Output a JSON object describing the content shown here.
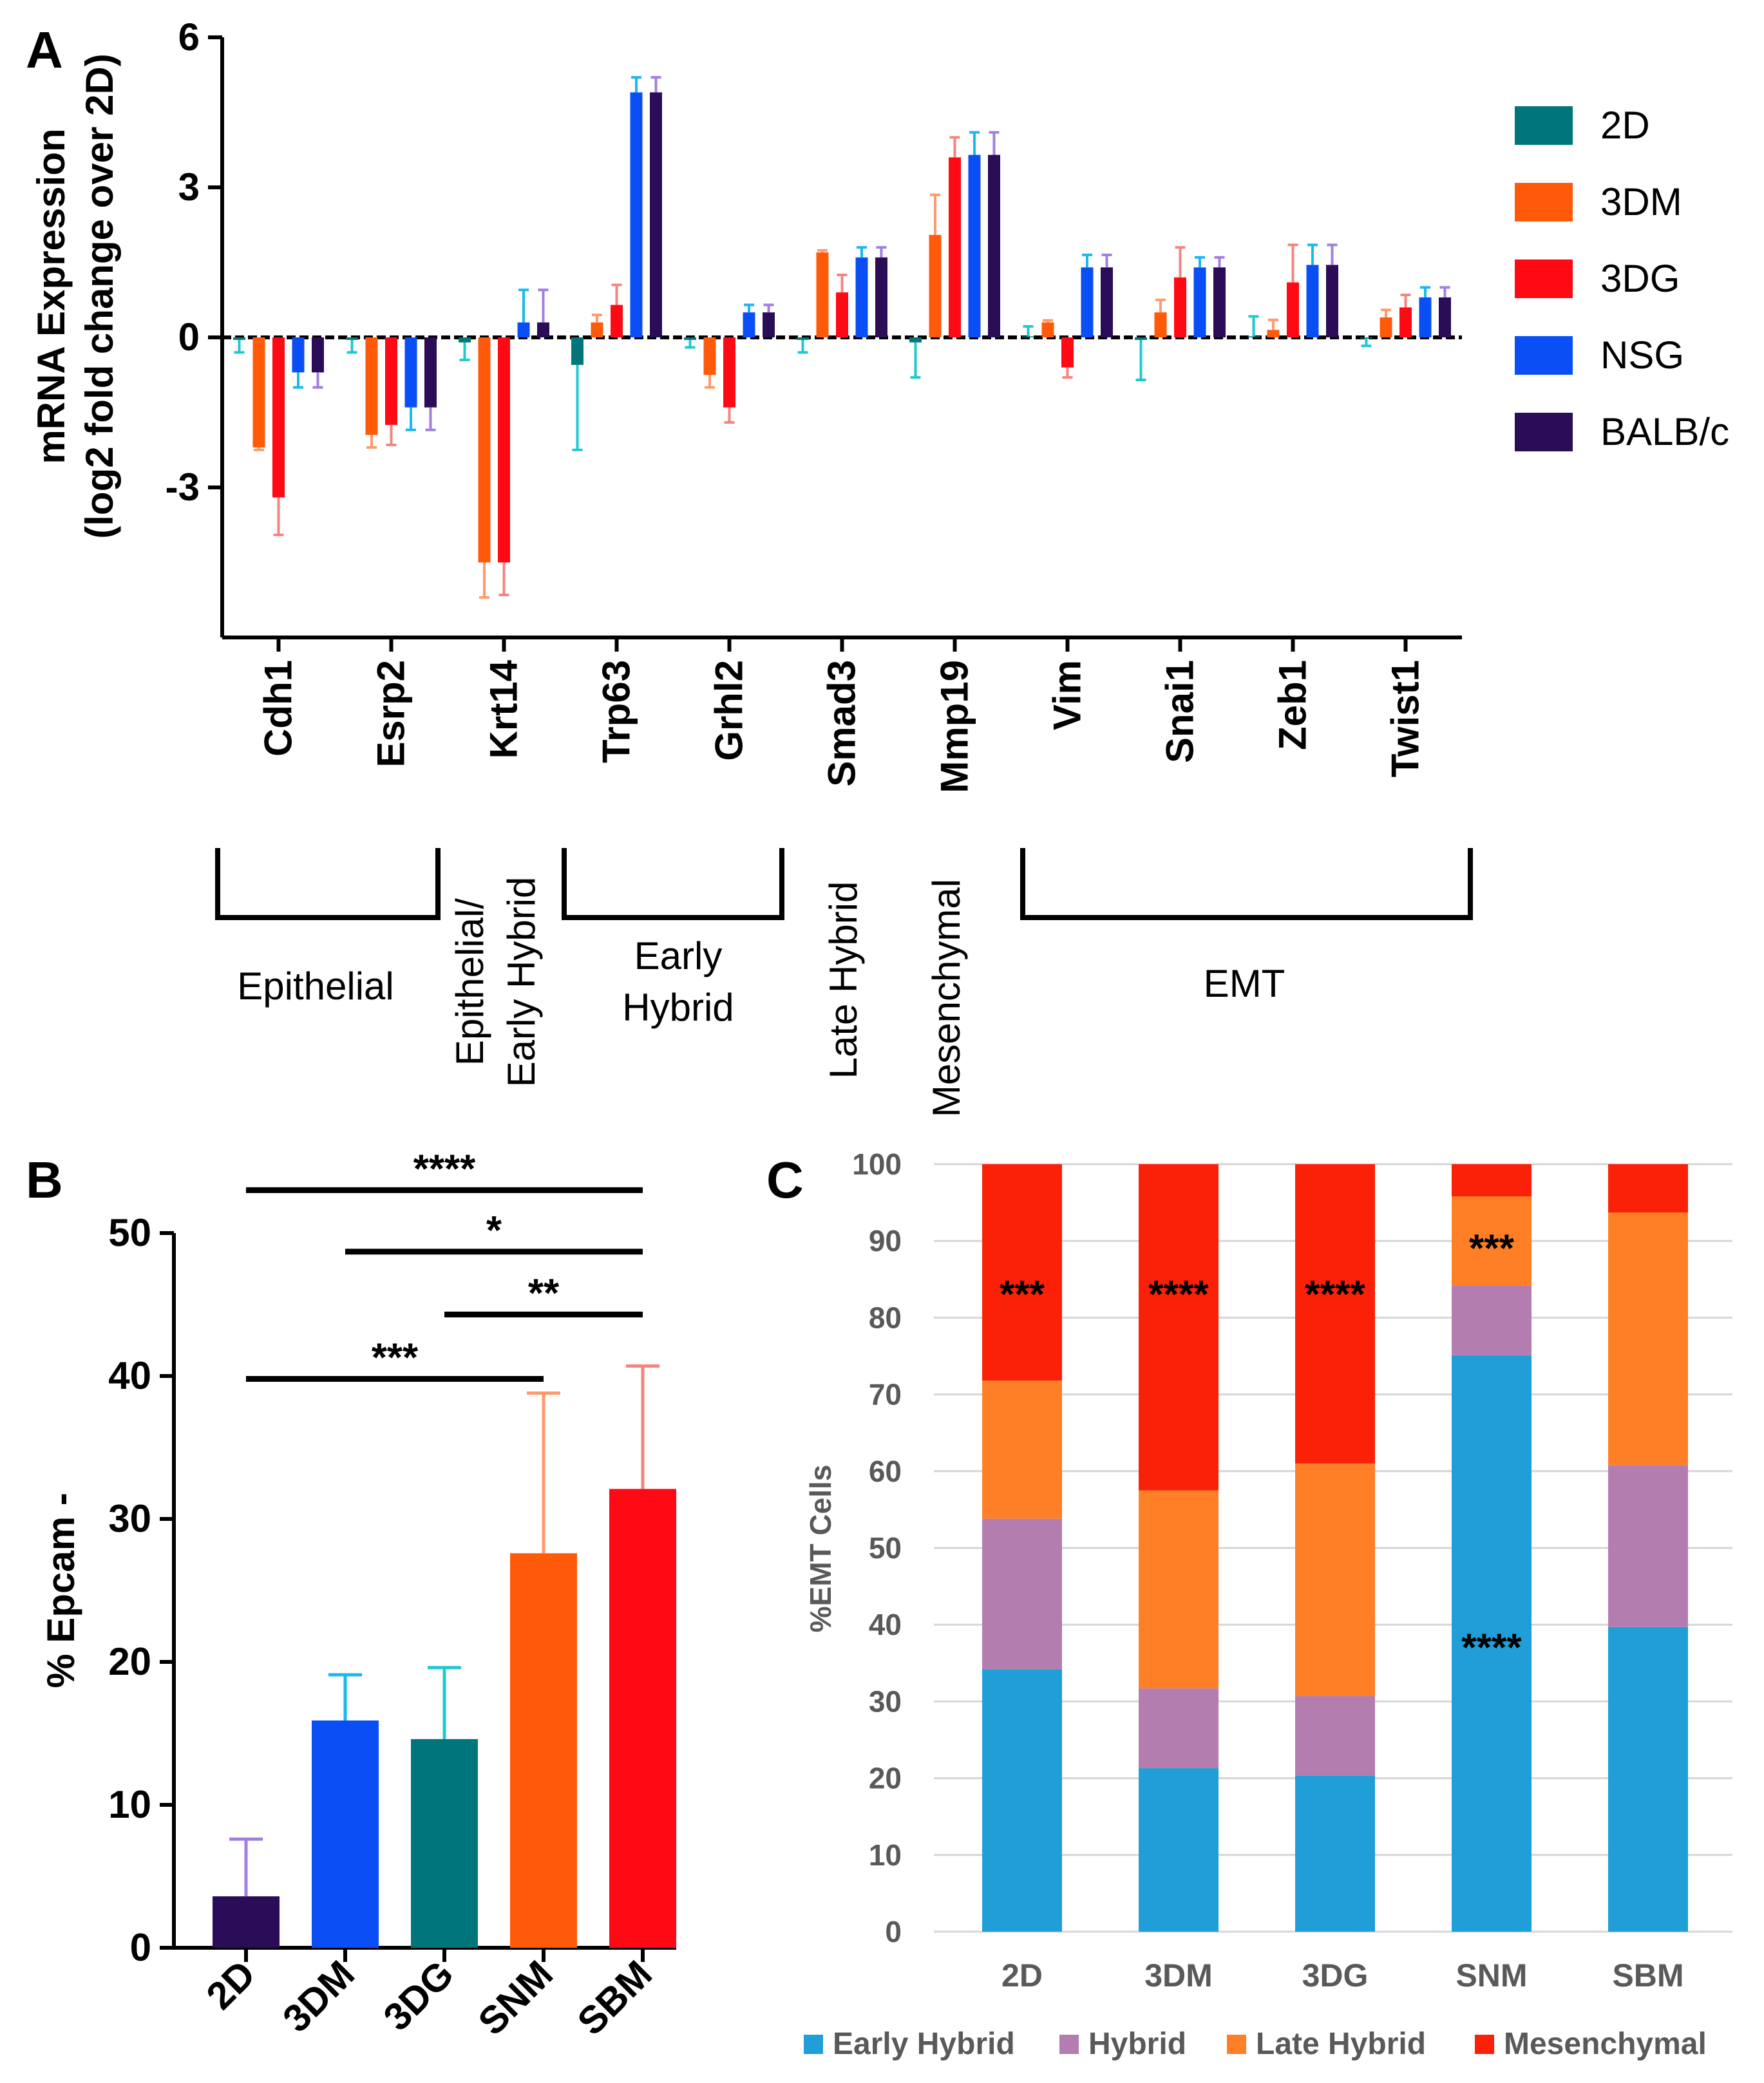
{
  "panels": {
    "a": "A",
    "b": "B",
    "c": "C"
  },
  "group_labels": [
    [
      "Epithelial"
    ],
    [
      "Epithelial/",
      "Early Hybrid"
    ],
    [
      "Early",
      "Hybrid"
    ],
    [
      "Late Hybrid"
    ],
    [
      "Mesenchymal"
    ],
    [
      "EMT"
    ]
  ],
  "colors": {
    "2D": "#00767a",
    "3DM": "#ff5a0a",
    "3DG": "#ff0a14",
    "NSG": "#0a4ff5",
    "BALB/c": "#2a0c57",
    "err_2D": "#1fc9d2",
    "err_3DM": "#ff9a6c",
    "err_3DG": "#f5847f",
    "err_NSG": "#1ab8ee",
    "err_BALB/c": "#a07fe0",
    "early_hybrid": "#1f9ed8",
    "hybrid": "#b47daf",
    "late_hybrid": "#ff7f26",
    "mesenchymal": "#fa2108",
    "gridline": "#d6d6d6",
    "axis": "#000000"
  },
  "chart_data": [
    {
      "id": "A",
      "type": "bar",
      "ylabel_lines": [
        "mRNA Expression",
        "(log2 fold change over 2D)"
      ],
      "ylim": [
        -6,
        6
      ],
      "yticks": [
        6,
        3,
        0,
        -3
      ],
      "ytick_labels": [
        "6",
        "3",
        "0",
        "-3"
      ],
      "categories": [
        "Cdh1",
        "Esrp2",
        "Krt14",
        "Trp63",
        "Grhl2",
        "Smad3",
        "Mmp19",
        "Vim",
        "Snai1",
        "Zeb1",
        "Twist1"
      ],
      "series": [
        {
          "name": "2D",
          "values": [
            -0.05,
            -0.05,
            -0.1,
            -0.55,
            -0.05,
            -0.05,
            -0.1,
            0.02,
            -0.05,
            0.02,
            -0.02
          ],
          "errors": [
            0.25,
            0.25,
            0.35,
            1.7,
            0.15,
            0.25,
            0.7,
            0.2,
            0.8,
            0.4,
            0.15
          ]
        },
        {
          "name": "3DM",
          "values": [
            -2.2,
            -1.95,
            -4.5,
            0.3,
            -0.75,
            1.7,
            2.05,
            0.3,
            0.5,
            0.15,
            0.4
          ],
          "errors": [
            0.05,
            0.25,
            0.7,
            0.15,
            0.25,
            0.04,
            0.8,
            0.04,
            0.25,
            0.2,
            0.15
          ]
        },
        {
          "name": "3DG",
          "values": [
            -3.2,
            -1.75,
            -4.5,
            0.65,
            -1.4,
            0.9,
            3.6,
            -0.6,
            1.2,
            1.1,
            0.6
          ],
          "errors": [
            0.75,
            0.4,
            0.65,
            0.4,
            0.3,
            0.35,
            0.4,
            0.2,
            0.6,
            0.75,
            0.25
          ]
        },
        {
          "name": "NSG",
          "values": [
            -0.7,
            -1.4,
            0.3,
            4.9,
            0.5,
            1.6,
            3.65,
            1.4,
            1.4,
            1.45,
            0.8
          ],
          "errors": [
            0.3,
            0.45,
            0.65,
            0.3,
            0.15,
            0.2,
            0.45,
            0.25,
            0.2,
            0.4,
            0.2
          ]
        },
        {
          "name": "BALB/c",
          "values": [
            -0.7,
            -1.4,
            0.3,
            4.9,
            0.5,
            1.6,
            3.65,
            1.4,
            1.4,
            1.45,
            0.8
          ],
          "errors": [
            0.3,
            0.45,
            0.65,
            0.3,
            0.15,
            0.2,
            0.45,
            0.25,
            0.2,
            0.4,
            0.2
          ]
        }
      ],
      "legend": [
        "2D",
        "3DM",
        "3DG",
        "NSG",
        "BALB/c"
      ],
      "legend_position": "right"
    },
    {
      "id": "B",
      "type": "bar",
      "ylabel": "% Epcam -",
      "ylim": [
        0,
        50
      ],
      "yticks": [
        0,
        10,
        20,
        30,
        40,
        50
      ],
      "ytick_labels": [
        "0",
        "10",
        "20",
        "30",
        "40",
        "50"
      ],
      "categories": [
        "2D",
        "3DM",
        "3DG",
        "SNM",
        "SBM"
      ],
      "values": [
        3.6,
        15.9,
        14.6,
        27.6,
        32.1
      ],
      "errors": [
        4.0,
        3.2,
        5.0,
        11.2,
        8.6
      ],
      "bar_colors": [
        "#2a0c57",
        "#0a4ff5",
        "#00767a",
        "#ff5a0a",
        "#ff0a14"
      ],
      "error_colors": [
        "#a07fe0",
        "#1ab8ee",
        "#1fc9d2",
        "#ff9a6c",
        "#f5847f"
      ],
      "significance": [
        {
          "from": "2D",
          "to": "SBM",
          "label": "****",
          "y": 53
        },
        {
          "from": "3DM",
          "to": "SBM",
          "label": "*",
          "y": 48.7
        },
        {
          "from": "3DG",
          "to": "SBM",
          "label": "**",
          "y": 44.3
        },
        {
          "from": "2D",
          "to": "SNM",
          "label": "***",
          "y": 39.8
        }
      ]
    },
    {
      "id": "C",
      "type": "bar",
      "stacked": true,
      "ylabel": "%EMT Cells",
      "ylim": [
        0,
        100
      ],
      "yticks": [
        0,
        10,
        20,
        30,
        40,
        50,
        60,
        70,
        80,
        90,
        100
      ],
      "ytick_labels": [
        "0",
        "10",
        "20",
        "30",
        "40",
        "50",
        "60",
        "70",
        "80",
        "90",
        "100"
      ],
      "grid": true,
      "categories": [
        "2D",
        "3DM",
        "3DG",
        "SNM",
        "SBM"
      ],
      "series": [
        {
          "name": "Early Hybrid",
          "values": [
            34.2,
            21.3,
            20.3,
            75.1,
            39.7
          ]
        },
        {
          "name": "Hybrid",
          "values": [
            19.6,
            10.4,
            10.4,
            9.1,
            21.1
          ]
        },
        {
          "name": "Late Hybrid",
          "values": [
            18.0,
            25.8,
            30.3,
            11.6,
            32.9
          ]
        },
        {
          "name": "Mesenchymal",
          "values": [
            28.2,
            42.5,
            39.0,
            4.2,
            6.3
          ]
        }
      ],
      "annotations": [
        {
          "category": "2D",
          "y": 84,
          "label": "***"
        },
        {
          "category": "3DM",
          "y": 84,
          "label": "****"
        },
        {
          "category": "3DG",
          "y": 84,
          "label": "****"
        },
        {
          "category": "SNM",
          "y": 90,
          "label": "***"
        },
        {
          "category": "SNM",
          "y": 38,
          "label": "****"
        }
      ],
      "legend_position": "bottom"
    }
  ]
}
